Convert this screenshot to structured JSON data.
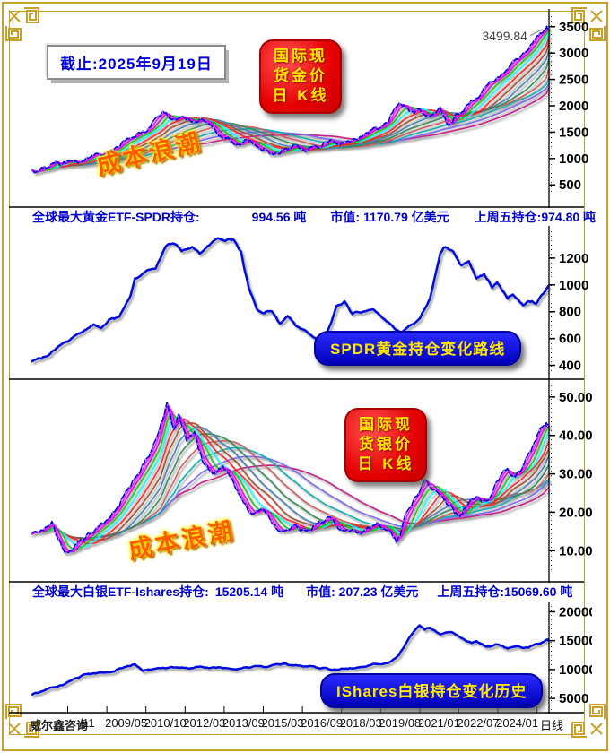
{
  "frame": {
    "gold_color": "#C9A128"
  },
  "header": {
    "date_box": "截止:2025年9月19日"
  },
  "badges": {
    "gold_kline": {
      "lines": [
        "国际现",
        "货金价",
        "日 K线"
      ]
    },
    "silver_kline": {
      "lines": [
        "国际现",
        "货银价",
        "日 K线"
      ]
    },
    "cost_wave": "成本浪潮",
    "spdr_route": "SPDR黄金持仓变化路线",
    "ishares_history": "IShares白银持仓变化历史"
  },
  "info_rows": {
    "gold_etf": {
      "label": "全球最大黄金ETF-SPDR持仓:",
      "holdings": "994.56 吨",
      "market_value": "市值: 1170.79 亿美元",
      "last_friday": "上周五持仓:974.80 吨"
    },
    "silver_etf": {
      "label": "全球最大白银ETF-Ishares持仓:",
      "holdings": "15205.14 吨",
      "market_value": "市值: 207.23 亿美元",
      "last_friday": "上周五持仓:15069.60 吨"
    }
  },
  "xaxis": {
    "brand": "威尔鑫咨询",
    "ticks": [
      "/11",
      "2009/05",
      "2010/10",
      "2012/03",
      "2013/09",
      "2015/03",
      "2016/09",
      "2018/03",
      "2019/08",
      "2021/01",
      "2022/07",
      "2024/01"
    ],
    "suffix": "日线"
  },
  "chart_data": [
    {
      "id": "c-gold",
      "type": "line",
      "label": "国际现货金价 日K线 (美元/盎司)",
      "ylim": [
        300,
        3700
      ],
      "yticks": [
        {
          "v": 3500,
          "label": "3500"
        },
        {
          "v": 3000,
          "label": "3000"
        },
        {
          "v": 2500,
          "label": "2500"
        },
        {
          "v": 2000,
          "label": "2000"
        },
        {
          "v": 1500,
          "label": "1500"
        },
        {
          "v": 1000,
          "label": "1000"
        },
        {
          "v": 500,
          "label": "500"
        }
      ],
      "color": "#0000e6",
      "ribbon_palette": [
        "#ff00ff",
        "#d400d4",
        "#00d000",
        "#00ffff",
        "#ff2222",
        "#a0522d",
        "#4682b4",
        "#2e8b57",
        "#cd5c5c",
        "#00b0b0",
        "#7b68ee",
        "#c71585"
      ],
      "annotation": {
        "x": 0.993,
        "value": 3499.84,
        "label": "3499.84"
      },
      "anchors": [
        [
          0,
          790
        ],
        [
          0.02,
          830
        ],
        [
          0.04,
          905
        ],
        [
          0.055,
          870
        ],
        [
          0.07,
          950
        ],
        [
          0.09,
          915
        ],
        [
          0.11,
          1005
        ],
        [
          0.13,
          1090
        ],
        [
          0.15,
          1125
        ],
        [
          0.17,
          1215
        ],
        [
          0.19,
          1385
        ],
        [
          0.21,
          1480
        ],
        [
          0.23,
          1600
        ],
        [
          0.255,
          1895
        ],
        [
          0.27,
          1740
        ],
        [
          0.29,
          1795
        ],
        [
          0.31,
          1690
        ],
        [
          0.33,
          1745
        ],
        [
          0.35,
          1585
        ],
        [
          0.37,
          1390
        ],
        [
          0.39,
          1285
        ],
        [
          0.41,
          1320
        ],
        [
          0.43,
          1255
        ],
        [
          0.45,
          1195
        ],
        [
          0.47,
          1085
        ],
        [
          0.49,
          1185
        ],
        [
          0.51,
          1245
        ],
        [
          0.53,
          1125
        ],
        [
          0.55,
          1235
        ],
        [
          0.57,
          1315
        ],
        [
          0.59,
          1270
        ],
        [
          0.61,
          1325
        ],
        [
          0.63,
          1345
        ],
        [
          0.65,
          1475
        ],
        [
          0.67,
          1545
        ],
        [
          0.69,
          1690
        ],
        [
          0.71,
          2045
        ],
        [
          0.73,
          1895
        ],
        [
          0.75,
          1945
        ],
        [
          0.77,
          1795
        ],
        [
          0.79,
          1975
        ],
        [
          0.805,
          1635
        ],
        [
          0.82,
          1845
        ],
        [
          0.84,
          1995
        ],
        [
          0.86,
          2145
        ],
        [
          0.88,
          2390
        ],
        [
          0.9,
          2540
        ],
        [
          0.92,
          2690
        ],
        [
          0.94,
          2880
        ],
        [
          0.96,
          3060
        ],
        [
          0.98,
          3330
        ],
        [
          0.995,
          3480
        ],
        [
          1,
          3499.84
        ]
      ]
    },
    {
      "id": "c-spdr",
      "type": "line",
      "label": "SPDR黄金持仓变化路线 (吨)",
      "ylim": [
        330,
        1400
      ],
      "yticks": [
        {
          "v": 1200,
          "label": "1200"
        },
        {
          "v": 1000,
          "label": "1000"
        },
        {
          "v": 800,
          "label": "800"
        },
        {
          "v": 600,
          "label": "600"
        },
        {
          "v": 400,
          "label": "400"
        }
      ],
      "color": "#0011dd",
      "anchors": [
        [
          0,
          428
        ],
        [
          0.02,
          452
        ],
        [
          0.04,
          505
        ],
        [
          0.06,
          562
        ],
        [
          0.08,
          608
        ],
        [
          0.1,
          652
        ],
        [
          0.12,
          705
        ],
        [
          0.135,
          678
        ],
        [
          0.15,
          742
        ],
        [
          0.17,
          762
        ],
        [
          0.19,
          905
        ],
        [
          0.2,
          1048
        ],
        [
          0.22,
          1098
        ],
        [
          0.24,
          1122
        ],
        [
          0.26,
          1288
        ],
        [
          0.275,
          1308
        ],
        [
          0.29,
          1252
        ],
        [
          0.31,
          1282
        ],
        [
          0.325,
          1232
        ],
        [
          0.34,
          1288
        ],
        [
          0.36,
          1348
        ],
        [
          0.375,
          1328
        ],
        [
          0.39,
          1338
        ],
        [
          0.405,
          1248
        ],
        [
          0.42,
          978
        ],
        [
          0.435,
          822
        ],
        [
          0.45,
          788
        ],
        [
          0.465,
          802
        ],
        [
          0.48,
          712
        ],
        [
          0.495,
          768
        ],
        [
          0.51,
          698
        ],
        [
          0.53,
          658
        ],
        [
          0.55,
          598
        ],
        [
          0.57,
          632
        ],
        [
          0.59,
          845
        ],
        [
          0.605,
          878
        ],
        [
          0.62,
          782
        ],
        [
          0.64,
          798
        ],
        [
          0.66,
          818
        ],
        [
          0.68,
          748
        ],
        [
          0.7,
          682
        ],
        [
          0.715,
          638
        ],
        [
          0.73,
          698
        ],
        [
          0.75,
          748
        ],
        [
          0.77,
          898
        ],
        [
          0.79,
          1238
        ],
        [
          0.8,
          1282
        ],
        [
          0.815,
          1248
        ],
        [
          0.83,
          1148
        ],
        [
          0.845,
          1178
        ],
        [
          0.86,
          1048
        ],
        [
          0.875,
          1078
        ],
        [
          0.89,
          978
        ],
        [
          0.9,
          1018
        ],
        [
          0.92,
          898
        ],
        [
          0.93,
          928
        ],
        [
          0.95,
          848
        ],
        [
          0.96,
          878
        ],
        [
          0.975,
          858
        ],
        [
          0.99,
          938
        ],
        [
          1,
          994.56
        ]
      ]
    },
    {
      "id": "c-silver",
      "type": "line",
      "label": "国际现货银价 日K线 (美元/盎司)",
      "ylim": [
        4,
        53
      ],
      "yticks": [
        {
          "v": 50,
          "label": "50.00"
        },
        {
          "v": 40,
          "label": "40.00"
        },
        {
          "v": 30,
          "label": "30.00"
        },
        {
          "v": 20,
          "label": "20.00"
        },
        {
          "v": 10,
          "label": "10.00"
        }
      ],
      "color": "#0000e6",
      "ribbon_palette": [
        "#ff00ff",
        "#d400d4",
        "#00d000",
        "#00ffff",
        "#ff2222",
        "#a0522d",
        "#4682b4",
        "#2e8b57",
        "#cd5c5c",
        "#00b0b0",
        "#7b68ee",
        "#c71585"
      ],
      "anchors": [
        [
          0,
          14.2
        ],
        [
          0.02,
          15.4
        ],
        [
          0.04,
          17.6
        ],
        [
          0.055,
          12.5
        ],
        [
          0.07,
          9.6
        ],
        [
          0.09,
          12.4
        ],
        [
          0.11,
          14.6
        ],
        [
          0.13,
          16.4
        ],
        [
          0.15,
          18.4
        ],
        [
          0.17,
          21.5
        ],
        [
          0.19,
          26.5
        ],
        [
          0.21,
          30.5
        ],
        [
          0.23,
          35.5
        ],
        [
          0.25,
          43
        ],
        [
          0.262,
          48.6
        ],
        [
          0.275,
          41.5
        ],
        [
          0.285,
          45.5
        ],
        [
          0.3,
          38.5
        ],
        [
          0.315,
          41
        ],
        [
          0.33,
          33.5
        ],
        [
          0.35,
          30
        ],
        [
          0.37,
          32
        ],
        [
          0.39,
          28
        ],
        [
          0.41,
          22.5
        ],
        [
          0.43,
          19.5
        ],
        [
          0.45,
          20.5
        ],
        [
          0.47,
          16.8
        ],
        [
          0.49,
          15.2
        ],
        [
          0.51,
          16.9
        ],
        [
          0.53,
          15.1
        ],
        [
          0.55,
          17
        ],
        [
          0.57,
          18.4
        ],
        [
          0.59,
          16.4
        ],
        [
          0.61,
          15.5
        ],
        [
          0.63,
          14.6
        ],
        [
          0.65,
          16.1
        ],
        [
          0.67,
          17.4
        ],
        [
          0.69,
          14.9
        ],
        [
          0.705,
          11.9
        ],
        [
          0.72,
          18.2
        ],
        [
          0.74,
          23.8
        ],
        [
          0.76,
          28.6
        ],
        [
          0.78,
          25.9
        ],
        [
          0.795,
          23.9
        ],
        [
          0.81,
          21.9
        ],
        [
          0.825,
          18.9
        ],
        [
          0.84,
          21.4
        ],
        [
          0.86,
          24.1
        ],
        [
          0.88,
          22.9
        ],
        [
          0.9,
          28.1
        ],
        [
          0.92,
          31.4
        ],
        [
          0.935,
          29.2
        ],
        [
          0.955,
          33.9
        ],
        [
          0.975,
          38.8
        ],
        [
          0.99,
          42.6
        ],
        [
          1,
          41.8
        ]
      ]
    },
    {
      "id": "c-ishares",
      "type": "line",
      "label": "IShares白银持仓变化历史 (吨)",
      "ylim": [
        3000,
        21000
      ],
      "yticks": [
        {
          "v": 20000,
          "label": "20000"
        },
        {
          "v": 15000,
          "label": "15000"
        },
        {
          "v": 10000,
          "label": "10000"
        },
        {
          "v": 5000,
          "label": "5000"
        }
      ],
      "color": "#0011dd",
      "anchors": [
        [
          0,
          5600
        ],
        [
          0.02,
          6200
        ],
        [
          0.04,
          6900
        ],
        [
          0.06,
          7300
        ],
        [
          0.08,
          8300
        ],
        [
          0.1,
          9100
        ],
        [
          0.12,
          9350
        ],
        [
          0.14,
          9450
        ],
        [
          0.16,
          9650
        ],
        [
          0.18,
          10450
        ],
        [
          0.2,
          10900
        ],
        [
          0.215,
          9750
        ],
        [
          0.23,
          9950
        ],
        [
          0.25,
          10250
        ],
        [
          0.27,
          10450
        ],
        [
          0.29,
          10350
        ],
        [
          0.31,
          10250
        ],
        [
          0.33,
          10450
        ],
        [
          0.35,
          10350
        ],
        [
          0.37,
          10250
        ],
        [
          0.39,
          10050
        ],
        [
          0.41,
          10350
        ],
        [
          0.43,
          10550
        ],
        [
          0.45,
          10450
        ],
        [
          0.47,
          10850
        ],
        [
          0.49,
          11050
        ],
        [
          0.51,
          10750
        ],
        [
          0.53,
          10550
        ],
        [
          0.55,
          10350
        ],
        [
          0.57,
          10250
        ],
        [
          0.59,
          9950
        ],
        [
          0.61,
          10150
        ],
        [
          0.63,
          10350
        ],
        [
          0.65,
          10650
        ],
        [
          0.67,
          10950
        ],
        [
          0.69,
          11150
        ],
        [
          0.71,
          12500
        ],
        [
          0.73,
          15500
        ],
        [
          0.75,
          17650
        ],
        [
          0.76,
          16900
        ],
        [
          0.77,
          17250
        ],
        [
          0.79,
          16100
        ],
        [
          0.81,
          16500
        ],
        [
          0.83,
          15500
        ],
        [
          0.85,
          14600
        ],
        [
          0.86,
          14900
        ],
        [
          0.88,
          13950
        ],
        [
          0.9,
          14350
        ],
        [
          0.92,
          13650
        ],
        [
          0.94,
          14050
        ],
        [
          0.96,
          13750
        ],
        [
          0.98,
          14450
        ],
        [
          0.995,
          15100
        ],
        [
          1,
          15205.14
        ]
      ]
    }
  ]
}
